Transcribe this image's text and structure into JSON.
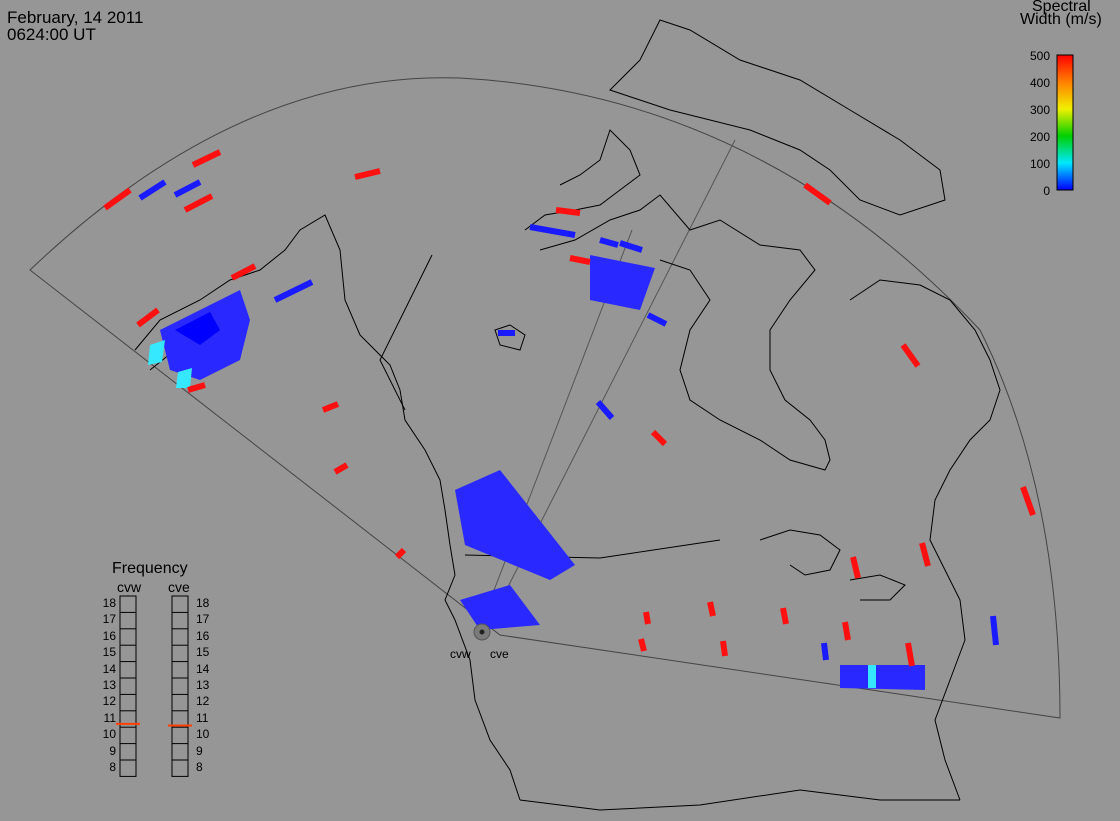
{
  "header": {
    "date": "February, 14 2011",
    "time": "0624:00 UT"
  },
  "colorbar": {
    "title_line1": "Spectral",
    "title_line2": "Width (m/s)",
    "ticks": [
      "500",
      "400",
      "300",
      "200",
      "100",
      "0"
    ],
    "colors": [
      "#ff0000",
      "#ff8000",
      "#f0f000",
      "#00d000",
      "#00e8ff",
      "#0000ff"
    ]
  },
  "radars": [
    {
      "name": "cvw"
    },
    {
      "name": "cve"
    }
  ],
  "frequency": {
    "title": "Frequency",
    "ticks": [
      "18",
      "17",
      "16",
      "15",
      "14",
      "13",
      "12",
      "11",
      "10",
      "9",
      "8"
    ],
    "scales": [
      {
        "name": "cvw",
        "current_mhz": 10.7
      },
      {
        "name": "cve",
        "current_mhz": 10.6
      }
    ],
    "marker_color": "#ff4000"
  }
}
